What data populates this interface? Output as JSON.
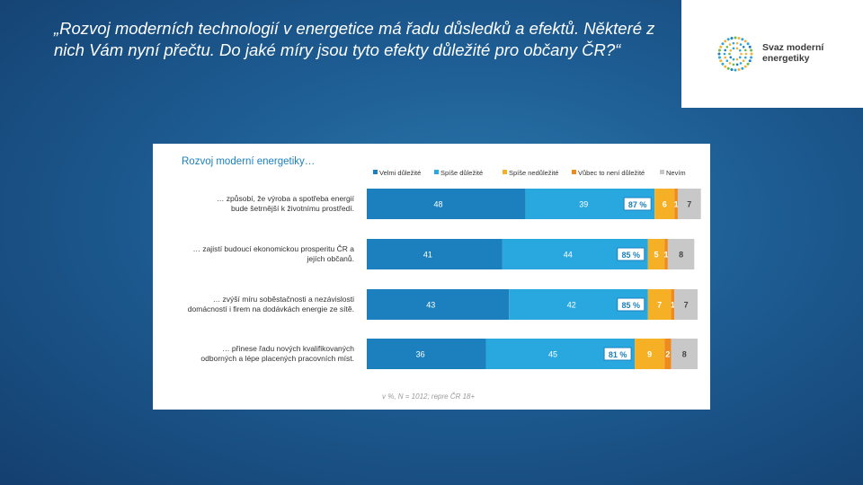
{
  "slide": {
    "title": "„Rozvoj moderních technologií v energetice má řadu důsledků a efektů. Některé z nich Vám nyní přečtu. Do jaké míry jsou tyto efekty důležité pro občany ČR?“"
  },
  "logo": {
    "line1": "Svaz moderní",
    "line2": "energetiky"
  },
  "colors": {
    "velmi": "#1b80bd",
    "spise": "#29a8e0",
    "spise_ne": "#f6b026",
    "vubec": "#ef8a1c",
    "nevim": "#c8c8c8",
    "sum_border": "#1b80bd",
    "sum_text": "#1b80bd"
  },
  "chart_data": {
    "type": "bar",
    "orientation": "horizontal",
    "stacked": true,
    "title": "Rozvoj moderní energetiky…",
    "legend_position": "top",
    "note": "v %, N = 1012; repre ČR 18+",
    "categories": [
      "… způsobí, že výroba a spotřeba energií bude šetrnější k životnímu prostředí.",
      "… zajistí budoucí ekonomickou prosperitu ČR a jejích občanů.",
      "… zvýší míru soběstačnosti a nezávislosti domácností i firem na dodávkách energie ze sítě.",
      "… přinese řadu nových kvalifikovaných odborných a lépe placených pracovních míst."
    ],
    "series": [
      {
        "name": "Velmi důležité",
        "values": [
          48,
          41,
          43,
          36
        ]
      },
      {
        "name": "Spíše důležité",
        "values": [
          39,
          44,
          42,
          45
        ]
      },
      {
        "name": "Spíše nedůležité",
        "values": [
          6,
          5,
          7,
          9
        ]
      },
      {
        "name": "Vůbec to není důležité",
        "values": [
          1,
          1,
          1,
          2
        ]
      },
      {
        "name": "Nevím",
        "values": [
          7,
          8,
          7,
          8
        ]
      }
    ],
    "totals_important": [
      "87 %",
      "85 %",
      "85 %",
      "81 %"
    ],
    "xlim": [
      0,
      100
    ]
  }
}
